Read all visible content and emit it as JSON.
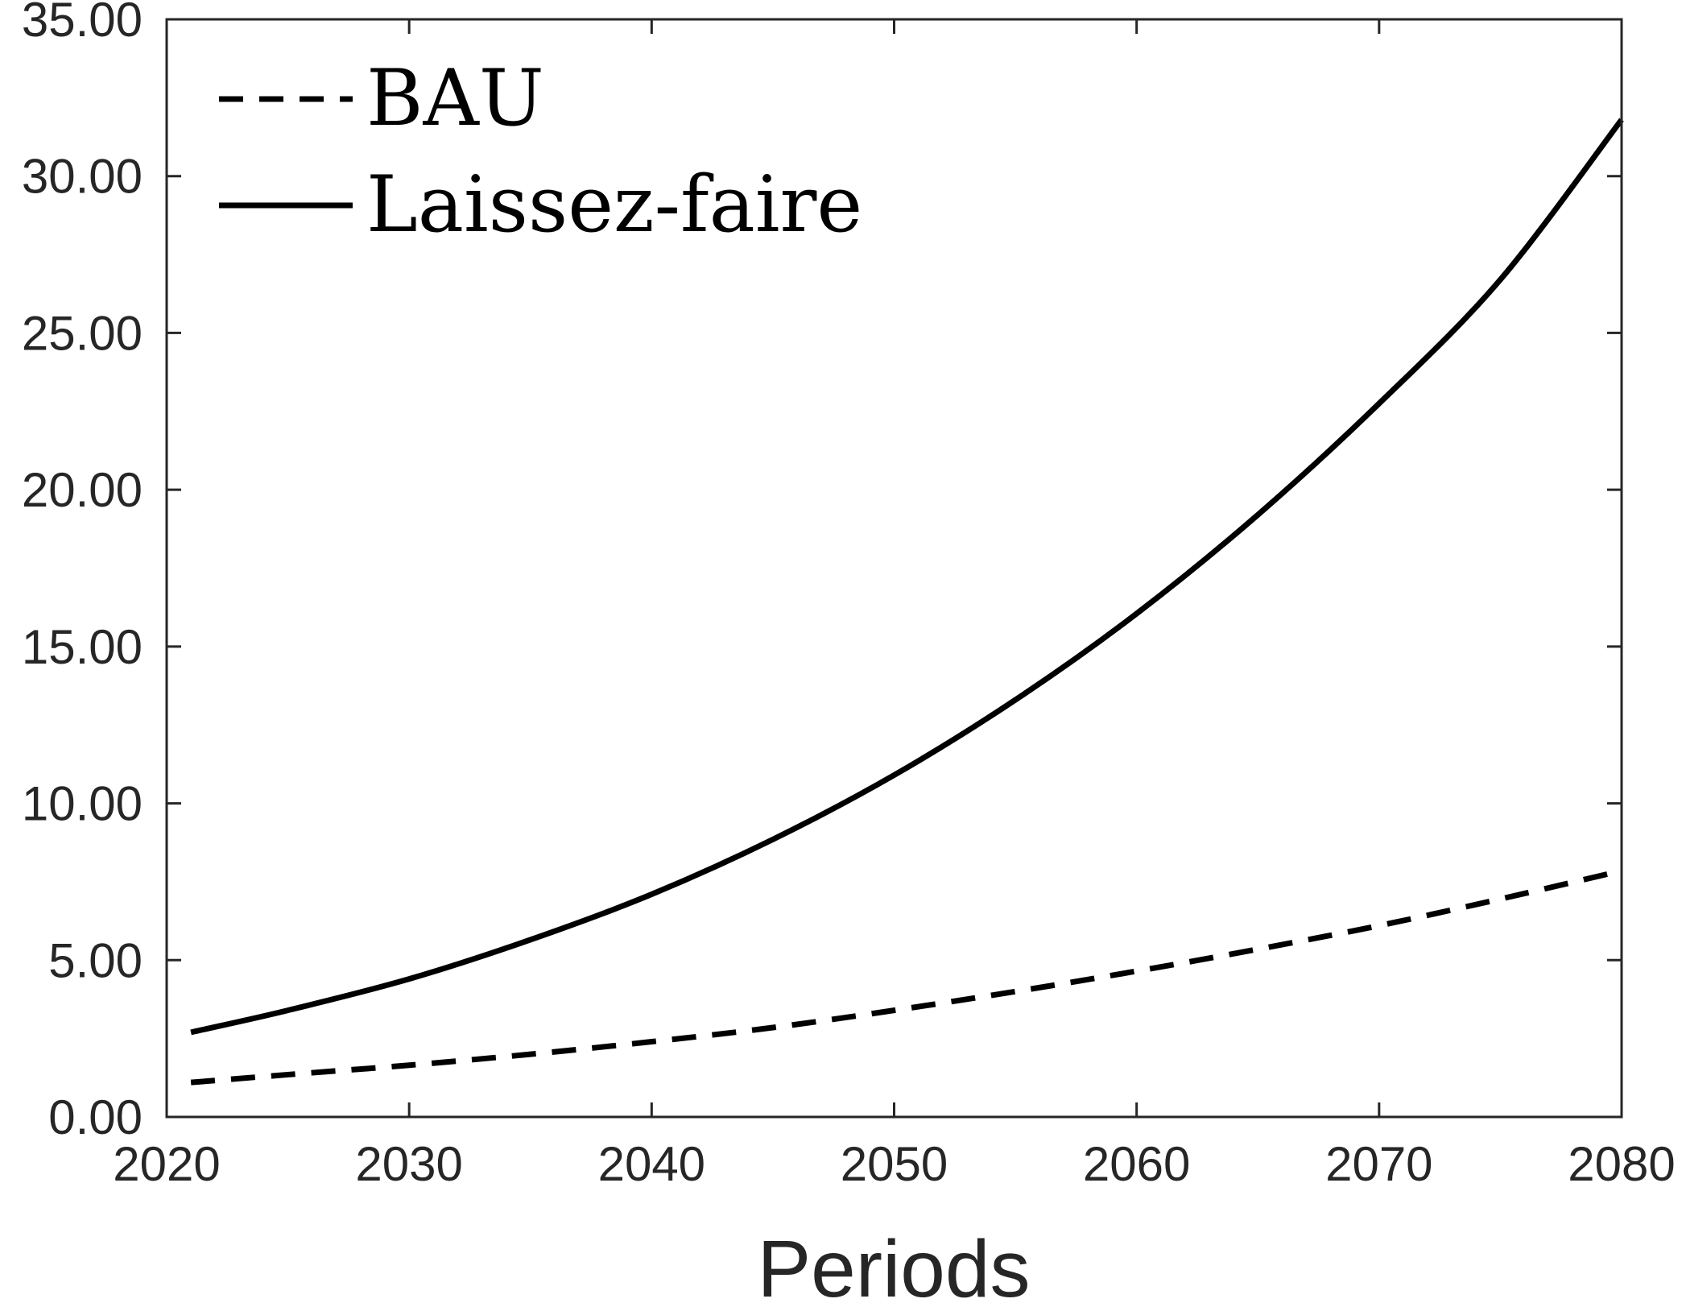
{
  "chart_data": {
    "type": "line",
    "xlabel": "Periods",
    "ylabel": "",
    "xlim": [
      2020,
      2080
    ],
    "ylim": [
      0,
      35
    ],
    "xticks": [
      2020,
      2030,
      2040,
      2050,
      2060,
      2070,
      2080
    ],
    "xtick_labels": [
      "2020",
      "2030",
      "2040",
      "2050",
      "2060",
      "2070",
      "2080"
    ],
    "yticks": [
      0,
      5,
      10,
      15,
      20,
      25,
      30,
      35
    ],
    "ytick_labels": [
      "0.00",
      "5.00",
      "10.00",
      "15.00",
      "20.00",
      "25.00",
      "30.00",
      "35.00"
    ],
    "grid": false,
    "legend_position": "top-left",
    "series": [
      {
        "name": "BAU",
        "style": "dashed",
        "color": "#000000",
        "x": [
          2021,
          2025,
          2030,
          2035,
          2040,
          2045,
          2050,
          2055,
          2060,
          2065,
          2070,
          2075,
          2080
        ],
        "y": [
          1.1,
          1.35,
          1.65,
          2.0,
          2.4,
          2.85,
          3.4,
          4.0,
          4.65,
          5.35,
          6.1,
          6.95,
          7.85
        ]
      },
      {
        "name": "Laissez-faire",
        "style": "solid",
        "color": "#000000",
        "x": [
          2021,
          2025,
          2030,
          2035,
          2040,
          2045,
          2050,
          2055,
          2060,
          2065,
          2070,
          2075,
          2080
        ],
        "y": [
          2.7,
          3.4,
          4.4,
          5.65,
          7.1,
          8.85,
          10.9,
          13.3,
          16.05,
          19.2,
          22.75,
          26.7,
          31.8
        ]
      }
    ]
  }
}
